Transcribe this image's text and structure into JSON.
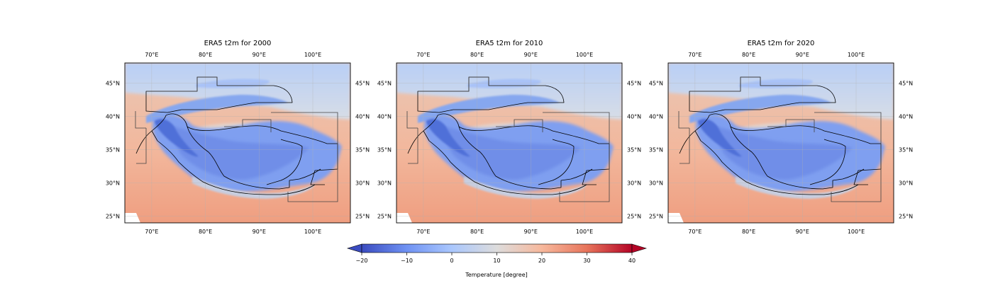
{
  "colors": {
    "colormap": [
      "#3b4cc0",
      "#6f92f3",
      "#aac7fd",
      "#dddcdc",
      "#f7b89c",
      "#e7745b",
      "#b40426"
    ],
    "border_line": "#000000",
    "region_line": "#333333",
    "grid_line": "#b0b0b0"
  },
  "maps": [
    {
      "title": "ERA5 t2m for 2000",
      "lon_ticks": [
        "70°E",
        "80°E",
        "90°E",
        "100°E"
      ],
      "lat_ticks": [
        "45°N",
        "40°N",
        "35°N",
        "30°N",
        "25°N"
      ]
    },
    {
      "title": "ERA5 t2m for 2010",
      "lon_ticks": [
        "70°E",
        "80°E",
        "90°E",
        "100°E"
      ],
      "lat_ticks": [
        "45°N",
        "40°N",
        "35°N",
        "30°N",
        "25°N"
      ]
    },
    {
      "title": "ERA5 t2m for 2020",
      "lon_ticks": [
        "70°E",
        "80°E",
        "90°E",
        "100°E"
      ],
      "lat_ticks": [
        "45°N",
        "40°N",
        "35°N",
        "30°N",
        "25°N"
      ]
    }
  ],
  "map_view": {
    "lon_range": [
      65,
      107
    ],
    "lat_range": [
      24,
      48
    ],
    "lon_tick_values": [
      70,
      80,
      90,
      100
    ],
    "lat_tick_values": [
      45,
      40,
      35,
      30,
      25
    ]
  },
  "colorbar": {
    "label": "Temperature [degree]",
    "range": [
      -20,
      40
    ],
    "tick_values": [
      -20,
      -10,
      0,
      10,
      20,
      30,
      40
    ],
    "tick_labels": [
      "−20",
      "−10",
      "0",
      "10",
      "20",
      "30",
      "40"
    ],
    "extend": "both"
  }
}
